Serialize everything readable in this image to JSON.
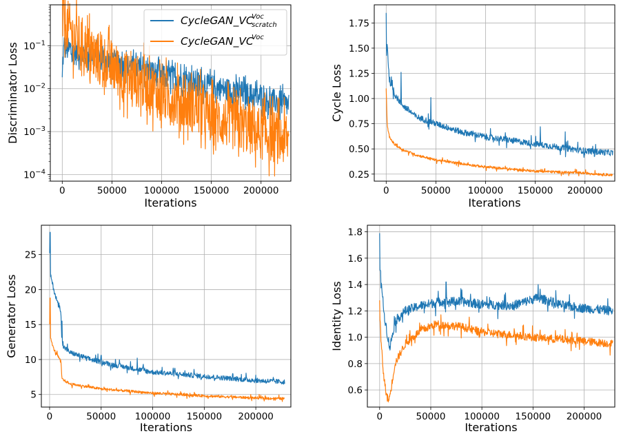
{
  "figure": {
    "legend": {
      "entries": [
        {
          "base": "CycleGAN_VC",
          "sup": "Voc",
          "sub": "scratch",
          "color": "#1f77b4"
        },
        {
          "base": "CycleGAN_VC",
          "sup": "Voc",
          "sub": "",
          "color": "#ff7f0e"
        }
      ],
      "placement": "top-right of first panel"
    },
    "colors": {
      "blue": "#1f77b4",
      "orange": "#ff7f0e",
      "grid": "#b0b0b0"
    }
  },
  "chart_data": [
    {
      "id": "disc",
      "type": "line",
      "title": "",
      "xlabel": "Iterations",
      "ylabel": "Discriminator Loss",
      "yscale": "log",
      "xlim": [
        -12000,
        230000
      ],
      "ylim": [
        7e-05,
        0.9
      ],
      "xticks": [
        0,
        50000,
        100000,
        150000,
        200000
      ],
      "xtick_labels": [
        "0",
        "50000",
        "100000",
        "150000",
        "200000"
      ],
      "yticks": [
        0.0001,
        0.001,
        0.01,
        0.1
      ],
      "ytick_labels": [
        "10^-4",
        "10^-3",
        "10^-2",
        "10^-1"
      ],
      "grid": true,
      "series": [
        {
          "color": "#1f77b4",
          "noise": 0.13,
          "log": true,
          "x": [
            0,
            1500,
            3000,
            10000,
            30000,
            60000,
            100000,
            150000,
            200000,
            228000
          ],
          "y": [
            0.015,
            0.08,
            0.09,
            0.07,
            0.06,
            0.035,
            0.02,
            0.011,
            0.006,
            0.004
          ]
        },
        {
          "color": "#ff7f0e",
          "noise": 0.28,
          "log": true,
          "x": [
            0,
            3000,
            10000,
            30000,
            60000,
            100000,
            150000,
            200000,
            228000
          ],
          "y": [
            0.6,
            0.35,
            0.17,
            0.06,
            0.02,
            0.007,
            0.002,
            0.0009,
            0.0006
          ]
        }
      ]
    },
    {
      "id": "cycle",
      "type": "line",
      "title": "",
      "xlabel": "Iterations",
      "ylabel": "Cycle Loss",
      "yscale": "linear",
      "xlim": [
        -12000,
        230000
      ],
      "ylim": [
        0.18,
        1.93
      ],
      "xticks": [
        0,
        50000,
        100000,
        150000,
        200000
      ],
      "xtick_labels": [
        "0",
        "50000",
        "100000",
        "150000",
        "200000"
      ],
      "yticks": [
        0.25,
        0.5,
        0.75,
        1.0,
        1.25,
        1.5,
        1.75
      ],
      "ytick_labels": [
        "0.25",
        "0.50",
        "0.75",
        "1.00",
        "1.25",
        "1.50",
        "1.75"
      ],
      "grid": true,
      "series": [
        {
          "color": "#1f77b4",
          "noise": 0.03,
          "spikes": [
            [
              0,
              1.85
            ],
            [
              15000,
              1.26
            ],
            [
              45000,
              1.01
            ],
            [
              155000,
              0.72
            ],
            [
              180000,
              0.67
            ]
          ],
          "x": [
            0,
            1000,
            3000,
            8000,
            15000,
            30000,
            50000,
            75000,
            100000,
            150000,
            200000,
            228000
          ],
          "y": [
            1.4,
            1.55,
            1.2,
            1.05,
            0.95,
            0.82,
            0.75,
            0.67,
            0.62,
            0.55,
            0.48,
            0.46
          ]
        },
        {
          "color": "#ff7f0e",
          "noise": 0.012,
          "spikes": [
            [
              0,
              1.1
            ]
          ],
          "x": [
            0,
            1000,
            3000,
            8000,
            15000,
            30000,
            50000,
            100000,
            150000,
            200000,
            228000
          ],
          "y": [
            1.05,
            0.75,
            0.62,
            0.55,
            0.5,
            0.44,
            0.39,
            0.32,
            0.28,
            0.26,
            0.24
          ]
        }
      ]
    },
    {
      "id": "gen",
      "type": "line",
      "title": "",
      "xlabel": "Iterations",
      "ylabel": "Generator Loss",
      "yscale": "linear",
      "xlim": [
        -8000,
        234000
      ],
      "ylim": [
        3.2,
        29.2
      ],
      "xticks": [
        0,
        50000,
        100000,
        150000,
        200000
      ],
      "xtick_labels": [
        "0",
        "50000",
        "100000",
        "150000",
        "200000"
      ],
      "yticks": [
        5,
        10,
        15,
        20,
        25
      ],
      "ytick_labels": [
        "5",
        "10",
        "15",
        "20",
        "25"
      ],
      "grid": true,
      "series": [
        {
          "color": "#1f77b4",
          "noise": 0.35,
          "spikes": [
            [
              500,
              28.2
            ],
            [
              12000,
              15.5
            ],
            [
              50000,
              10.6
            ],
            [
              85000,
              10.2
            ],
            [
              140000,
              8.6
            ]
          ],
          "x": [
            0,
            1000,
            4000,
            8000,
            11000,
            12000,
            20000,
            40000,
            60000,
            100000,
            150000,
            200000,
            228000
          ],
          "y": [
            25,
            22,
            20,
            18,
            17,
            12,
            11,
            10,
            9.3,
            8.2,
            7.6,
            7.0,
            6.8
          ]
        },
        {
          "color": "#ff7f0e",
          "noise": 0.18,
          "spikes": [
            [
              500,
              18.8
            ]
          ],
          "x": [
            0,
            1000,
            4000,
            8000,
            11000,
            12000,
            20000,
            50000,
            100000,
            150000,
            200000,
            228000
          ],
          "y": [
            15,
            13,
            11.5,
            10.5,
            9.7,
            7.2,
            6.5,
            5.8,
            5.2,
            4.8,
            4.5,
            4.4
          ]
        }
      ]
    },
    {
      "id": "ident",
      "type": "line",
      "title": "",
      "xlabel": "Iterations",
      "ylabel": "Identity Loss",
      "yscale": "linear",
      "xlim": [
        -12000,
        230000
      ],
      "ylim": [
        0.47,
        1.85
      ],
      "xticks": [
        0,
        50000,
        100000,
        150000,
        200000
      ],
      "xtick_labels": [
        "0",
        "50000",
        "100000",
        "150000",
        "200000"
      ],
      "yticks": [
        0.6,
        0.8,
        1.0,
        1.2,
        1.4,
        1.6,
        1.8
      ],
      "ytick_labels": [
        "0.6",
        "0.8",
        "1.0",
        "1.2",
        "1.4",
        "1.6",
        "1.8"
      ],
      "grid": true,
      "series": [
        {
          "color": "#1f77b4",
          "noise": 0.035,
          "spikes": [
            [
              0,
              1.79
            ],
            [
              65000,
              1.42
            ],
            [
              155000,
              1.4
            ]
          ],
          "x": [
            0,
            1500,
            4000,
            8000,
            10000,
            15000,
            25000,
            40000,
            60000,
            80000,
            100000,
            130000,
            155000,
            180000,
            200000,
            228000
          ],
          "y": [
            1.5,
            1.45,
            1.2,
            1.0,
            0.92,
            1.12,
            1.2,
            1.24,
            1.27,
            1.27,
            1.25,
            1.24,
            1.3,
            1.24,
            1.22,
            1.2
          ]
        },
        {
          "color": "#ff7f0e",
          "noise": 0.03,
          "spikes": [
            [
              0,
              1.28
            ]
          ],
          "x": [
            0,
            1500,
            4000,
            7000,
            9000,
            11000,
            15000,
            25000,
            40000,
            55000,
            80000,
            100000,
            150000,
            200000,
            228000
          ],
          "y": [
            1.2,
            0.95,
            0.7,
            0.55,
            0.52,
            0.6,
            0.8,
            0.95,
            1.05,
            1.1,
            1.08,
            1.04,
            1.0,
            0.97,
            0.95
          ]
        }
      ]
    }
  ]
}
